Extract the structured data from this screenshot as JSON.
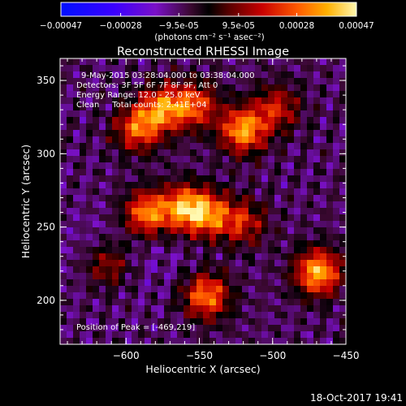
{
  "chart_data": {
    "type": "heatmap",
    "title": "Reconstructed RHESSI Image",
    "xlabel": "Heliocentric X (arcsec)",
    "ylabel": "Heliocentric Y (arcsec)",
    "xlim": [
      -645,
      -450
    ],
    "ylim": [
      170,
      365
    ],
    "x_ticks": [
      -600,
      -550,
      -500,
      -450
    ],
    "y_ticks": [
      200,
      250,
      300,
      350
    ],
    "colorbar": {
      "ticks": [
        "-0.00047",
        "-0.00028",
        "-9.5e-05",
        "9.5e-05",
        "0.00028",
        "0.00047"
      ],
      "unit_label": "(photons cm⁻² s⁻¹ asec⁻²)",
      "min": -0.00047,
      "max": 0.00047
    },
    "info_lines": [
      "9-May-2015 03:28:04.000 to 03:38:04.000",
      "Detectors: 3F 5F 6F 7F 8F 9F, Att 0",
      "Energy Range: 12.0 - 25.0 keV",
      "Clean     Total counts: 2.41E+04"
    ],
    "peak_text": "Position of Peak = [-469,219]",
    "peak": [
      -469,
      219
    ],
    "intensity_normalized": 1.0,
    "bright_sources": [
      {
        "x": -592,
        "y": 317,
        "w": 0.75
      },
      {
        "x": -575,
        "y": 331,
        "w": 0.8
      },
      {
        "x": -553,
        "y": 333,
        "w": 0.7
      },
      {
        "x": -520,
        "y": 316,
        "w": 0.95
      },
      {
        "x": -497,
        "y": 331,
        "w": 0.55
      },
      {
        "x": -586,
        "y": 259,
        "w": 0.9
      },
      {
        "x": -560,
        "y": 263,
        "w": 0.9
      },
      {
        "x": -543,
        "y": 258,
        "w": 0.75
      },
      {
        "x": -520,
        "y": 253,
        "w": 0.55
      },
      {
        "x": -469,
        "y": 219,
        "w": 1.0
      },
      {
        "x": -545,
        "y": 203,
        "w": 0.85
      },
      {
        "x": -612,
        "y": 224,
        "w": 0.5
      }
    ]
  },
  "footer": {
    "timestamp": "18-Oct-2017 19:41"
  }
}
